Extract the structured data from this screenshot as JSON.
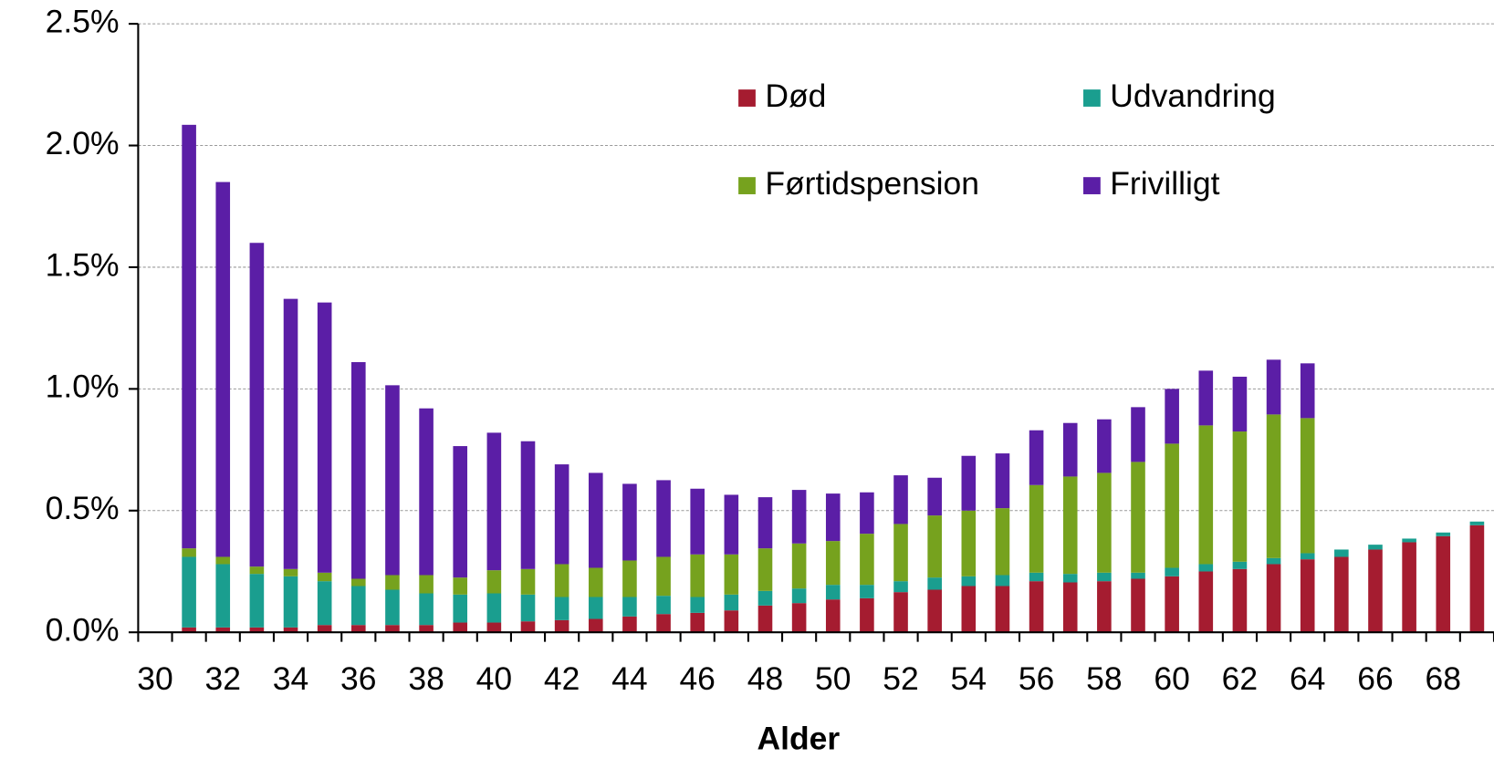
{
  "chart_data": {
    "type": "stacked_bar",
    "x_label": "Alder",
    "categories": [
      "30",
      null,
      "32",
      null,
      "34",
      null,
      "36",
      null,
      "38",
      null,
      "40",
      null,
      "42",
      null,
      "44",
      null,
      "46",
      null,
      "48",
      null,
      "50",
      null,
      "52",
      null,
      "54",
      null,
      "56",
      null,
      "58",
      null,
      "60",
      null,
      "62",
      null,
      "64",
      null,
      "66",
      null,
      "68",
      null
    ],
    "series": [
      {
        "name": "Død",
        "color": "#a51c30",
        "values": [
          null,
          0.02,
          0.02,
          0.02,
          0.02,
          0.03,
          0.03,
          0.03,
          0.03,
          0.04,
          0.04,
          0.045,
          0.05,
          0.055,
          0.065,
          0.075,
          0.08,
          0.09,
          0.11,
          0.12,
          0.135,
          0.14,
          0.165,
          0.175,
          0.19,
          0.19,
          0.21,
          0.205,
          0.21,
          0.22,
          0.23,
          0.25,
          0.26,
          0.28,
          0.3,
          0.31,
          0.34,
          0.37,
          0.395,
          0.44
        ]
      },
      {
        "name": "Udvandring",
        "color": "#1a9e8f",
        "values": [
          null,
          0.29,
          0.26,
          0.22,
          0.21,
          0.18,
          0.16,
          0.145,
          0.13,
          0.115,
          0.12,
          0.11,
          0.095,
          0.09,
          0.08,
          0.075,
          0.065,
          0.065,
          0.06,
          0.06,
          0.06,
          0.055,
          0.045,
          0.05,
          0.04,
          0.045,
          0.035,
          0.035,
          0.035,
          0.025,
          0.035,
          0.03,
          0.03,
          0.025,
          0.025,
          0.03,
          0.02,
          0.015,
          0.015,
          0.015
        ]
      },
      {
        "name": "Førtidspension",
        "color": "#76a21e",
        "values": [
          null,
          0.035,
          0.03,
          0.03,
          0.03,
          0.035,
          0.03,
          0.06,
          0.075,
          0.07,
          0.095,
          0.105,
          0.135,
          0.12,
          0.15,
          0.16,
          0.175,
          0.165,
          0.175,
          0.185,
          0.18,
          0.21,
          0.235,
          0.255,
          0.27,
          0.275,
          0.36,
          0.4,
          0.41,
          0.455,
          0.51,
          0.57,
          0.535,
          0.59,
          0.555,
          null,
          null,
          null,
          null,
          null
        ]
      },
      {
        "name": "Frivilligt",
        "color": "#5b1ea6",
        "values": [
          null,
          1.74,
          1.54,
          1.33,
          1.11,
          1.11,
          0.89,
          0.78,
          0.685,
          0.54,
          0.565,
          0.525,
          0.41,
          0.39,
          0.315,
          0.315,
          0.27,
          0.245,
          0.21,
          0.22,
          0.195,
          0.17,
          0.2,
          0.155,
          0.225,
          0.225,
          0.225,
          0.22,
          0.22,
          0.225,
          0.225,
          0.225,
          0.225,
          0.225,
          0.225,
          null,
          null,
          null,
          null,
          null
        ]
      }
    ],
    "ylim": [
      0,
      2.5
    ],
    "yticks": [
      {
        "value": 0,
        "label": "0.0%"
      },
      {
        "value": 0.5,
        "label": "0.5%"
      },
      {
        "value": 1,
        "label": "1.0%"
      },
      {
        "value": 1.5,
        "label": "1.5%"
      },
      {
        "value": 2,
        "label": "2.0%"
      },
      {
        "value": 2.5,
        "label": "2.5%"
      }
    ],
    "grid": true,
    "legend": "top-right"
  }
}
